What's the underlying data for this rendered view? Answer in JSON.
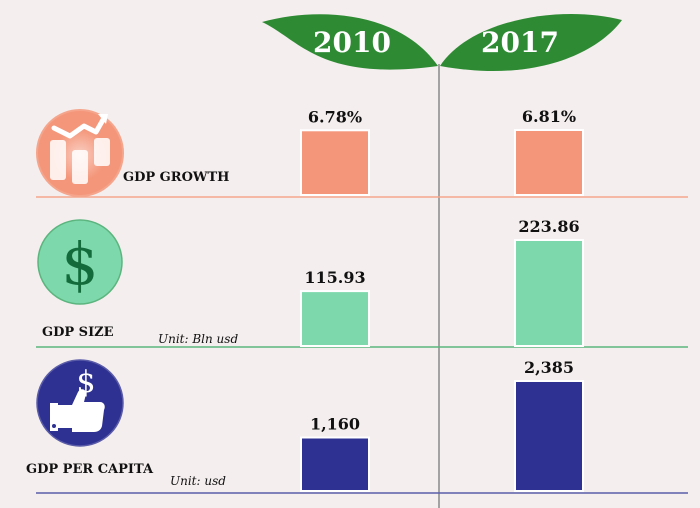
{
  "chart_data": {
    "type": "bar",
    "categories": [
      "2010",
      "2017"
    ],
    "rows": [
      {
        "label": "GDP GROWTH",
        "unit": "",
        "values": [
          6.78,
          6.81
        ],
        "display": [
          "6.78%",
          "6.81%"
        ],
        "color": "#f4967a",
        "line_color": "#f4a58c",
        "icon": "growth-chart-icon"
      },
      {
        "label": "GDP SIZE",
        "unit": "Unit: Bln usd",
        "values": [
          115.93,
          223.86
        ],
        "display": [
          "115.93",
          "223.86"
        ],
        "color": "#7dd9ab",
        "line_color": "#5cb57f",
        "icon": "dollar-icon"
      },
      {
        "label": "GDP PER CAPITA",
        "unit": "Unit: usd",
        "values": [
          1160,
          2385
        ],
        "display": [
          "1,160",
          "2,385"
        ],
        "color": "#2e3192",
        "line_color": "#5a5ca8",
        "icon": "thumbs-up-dollar-icon"
      }
    ]
  },
  "colors": {
    "leaf": "#2e8b34",
    "background": "#f5eeee"
  }
}
